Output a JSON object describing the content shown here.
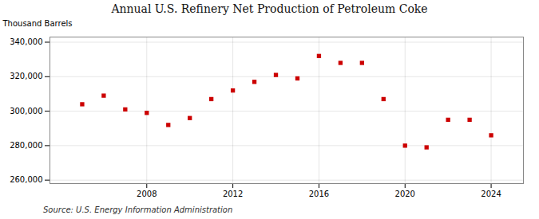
{
  "chart_data": {
    "type": "scatter",
    "title": "Annual U.S. Refinery Net Production of Petroleum Coke",
    "ylabel": "Thousand Barrels",
    "annotations": [
      "Source: U.S. Energy Information Administration"
    ],
    "x": [
      2005,
      2006,
      2007,
      2008,
      2009,
      2010,
      2011,
      2012,
      2013,
      2014,
      2015,
      2016,
      2017,
      2018,
      2019,
      2020,
      2021,
      2022,
      2023,
      2024
    ],
    "values": [
      304000,
      309000,
      301000,
      299000,
      292000,
      296000,
      307000,
      312000,
      317000,
      321000,
      319000,
      332000,
      328000,
      328000,
      307000,
      280000,
      279000,
      295000,
      295000,
      286000
    ],
    "color": "#cc0000",
    "marker": "square",
    "xlim": [
      2003.5,
      2025.5
    ],
    "xticks": [
      2008,
      2012,
      2016,
      2020,
      2024
    ],
    "ylim": [
      258000,
      343000
    ],
    "yticks": [
      {
        "value": 260000,
        "label": "260,000"
      },
      {
        "value": 280000,
        "label": "280,000"
      },
      {
        "value": 300000,
        "label": "300,000"
      },
      {
        "value": 320000,
        "label": "320,000"
      },
      {
        "value": 340000,
        "label": "340,000"
      }
    ],
    "grid": true
  }
}
